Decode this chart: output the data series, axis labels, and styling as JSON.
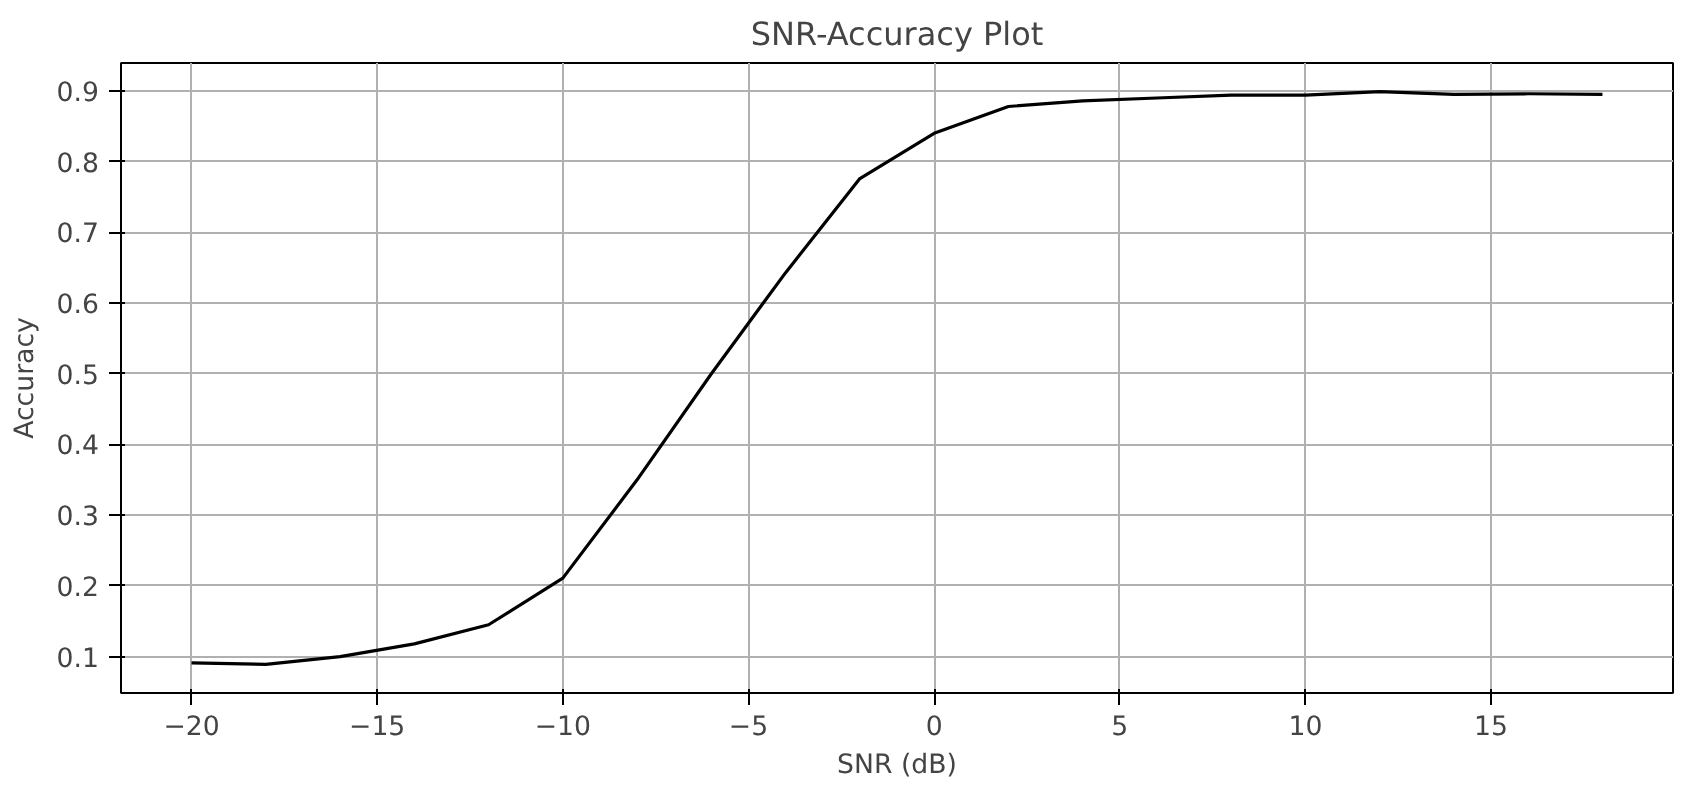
{
  "chart_data": {
    "type": "line",
    "title": "SNR-Accuracy Plot",
    "xlabel": "SNR (dB)",
    "ylabel": "Accuracy",
    "x": [
      -20,
      -18,
      -16,
      -14,
      -12,
      -10,
      -8,
      -6,
      -4,
      -2,
      0,
      2,
      4,
      6,
      8,
      10,
      12,
      14,
      16,
      18
    ],
    "series": [
      {
        "color": "#000000",
        "values": [
          0.091,
          0.089,
          0.1,
          0.118,
          0.145,
          0.211,
          0.35,
          0.5,
          0.643,
          0.776,
          0.84,
          0.878,
          0.886,
          0.89,
          0.894,
          0.894,
          0.899,
          0.895,
          0.896,
          0.895
        ]
      }
    ],
    "xlim": [
      -21.9,
      19.9
    ],
    "xticks": [
      {
        "value": -20,
        "label": "−20"
      },
      {
        "value": -15,
        "label": "−15"
      },
      {
        "value": -10,
        "label": "−10"
      },
      {
        "value": -5,
        "label": "−5"
      },
      0,
      5,
      10,
      15
    ],
    "ylim": [
      0.0485,
      0.9395
    ],
    "yticks": [
      0.1,
      0.2,
      0.3,
      0.4,
      0.5,
      0.6,
      0.7,
      0.8,
      0.9
    ],
    "grid": true,
    "line_style": "solid"
  }
}
